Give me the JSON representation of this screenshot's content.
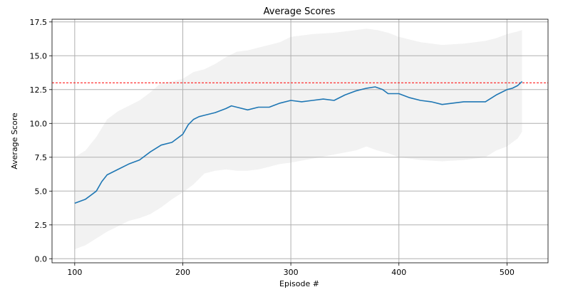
{
  "chart_data": {
    "type": "line",
    "title": "Average Scores",
    "xlabel": "Episode #",
    "ylabel": "Average Score",
    "xlim": [
      79,
      538
    ],
    "ylim": [
      -0.3,
      17.7
    ],
    "x_ticks": [
      100,
      200,
      300,
      400,
      500
    ],
    "y_ticks": [
      0.0,
      2.5,
      5.0,
      7.5,
      10.0,
      12.5,
      15.0,
      17.5
    ],
    "x_tick_labels": [
      "100",
      "200",
      "300",
      "400",
      "500"
    ],
    "y_tick_labels": [
      "0.0",
      "2.5",
      "5.0",
      "7.5",
      "10.0",
      "12.5",
      "15.0",
      "17.5"
    ],
    "grid": true,
    "target_line": {
      "y": 13.0,
      "color": "#ff0000",
      "style": "dashed"
    },
    "series": [
      {
        "color": "#1f77b4",
        "x": [
          100,
          110,
          120,
          125,
          130,
          140,
          150,
          160,
          170,
          180,
          190,
          200,
          205,
          210,
          215,
          220,
          230,
          240,
          245,
          250,
          260,
          270,
          280,
          290,
          300,
          310,
          320,
          330,
          340,
          350,
          360,
          370,
          378,
          385,
          390,
          400,
          410,
          420,
          430,
          440,
          450,
          460,
          470,
          480,
          490,
          500,
          505,
          510,
          514
        ],
        "values": [
          4.1,
          4.4,
          5.0,
          5.7,
          6.2,
          6.6,
          7.0,
          7.3,
          7.9,
          8.4,
          8.6,
          9.2,
          9.9,
          10.3,
          10.5,
          10.6,
          10.8,
          11.1,
          11.3,
          11.2,
          11.0,
          11.2,
          11.2,
          11.5,
          11.7,
          11.6,
          11.7,
          11.8,
          11.7,
          12.1,
          12.4,
          12.6,
          12.7,
          12.5,
          12.2,
          12.2,
          11.9,
          11.7,
          11.6,
          11.4,
          11.5,
          11.6,
          11.6,
          11.6,
          12.1,
          12.5,
          12.6,
          12.8,
          13.1
        ]
      }
    ],
    "band": {
      "color": "#f2f2f2",
      "x": [
        100,
        110,
        120,
        130,
        140,
        150,
        160,
        170,
        180,
        190,
        200,
        210,
        220,
        230,
        240,
        250,
        260,
        270,
        280,
        290,
        300,
        320,
        340,
        360,
        370,
        380,
        390,
        400,
        420,
        440,
        460,
        480,
        490,
        500,
        510,
        514
      ],
      "upper": [
        7.5,
        8.0,
        9.0,
        10.3,
        10.9,
        11.3,
        11.7,
        12.3,
        13.0,
        13.1,
        13.3,
        13.8,
        14.0,
        14.4,
        14.9,
        15.3,
        15.4,
        15.6,
        15.8,
        16.0,
        16.4,
        16.6,
        16.7,
        16.9,
        17.0,
        16.9,
        16.7,
        16.4,
        16.0,
        15.8,
        15.9,
        16.1,
        16.3,
        16.6,
        16.8,
        16.9
      ],
      "lower": [
        0.7,
        1.0,
        1.5,
        2.0,
        2.4,
        2.8,
        3.0,
        3.3,
        3.8,
        4.4,
        4.9,
        5.5,
        6.3,
        6.5,
        6.6,
        6.5,
        6.5,
        6.6,
        6.8,
        7.0,
        7.1,
        7.4,
        7.7,
        8.0,
        8.3,
        8.0,
        7.8,
        7.5,
        7.3,
        7.2,
        7.3,
        7.5,
        8.0,
        8.3,
        8.9,
        9.4
      ]
    }
  }
}
